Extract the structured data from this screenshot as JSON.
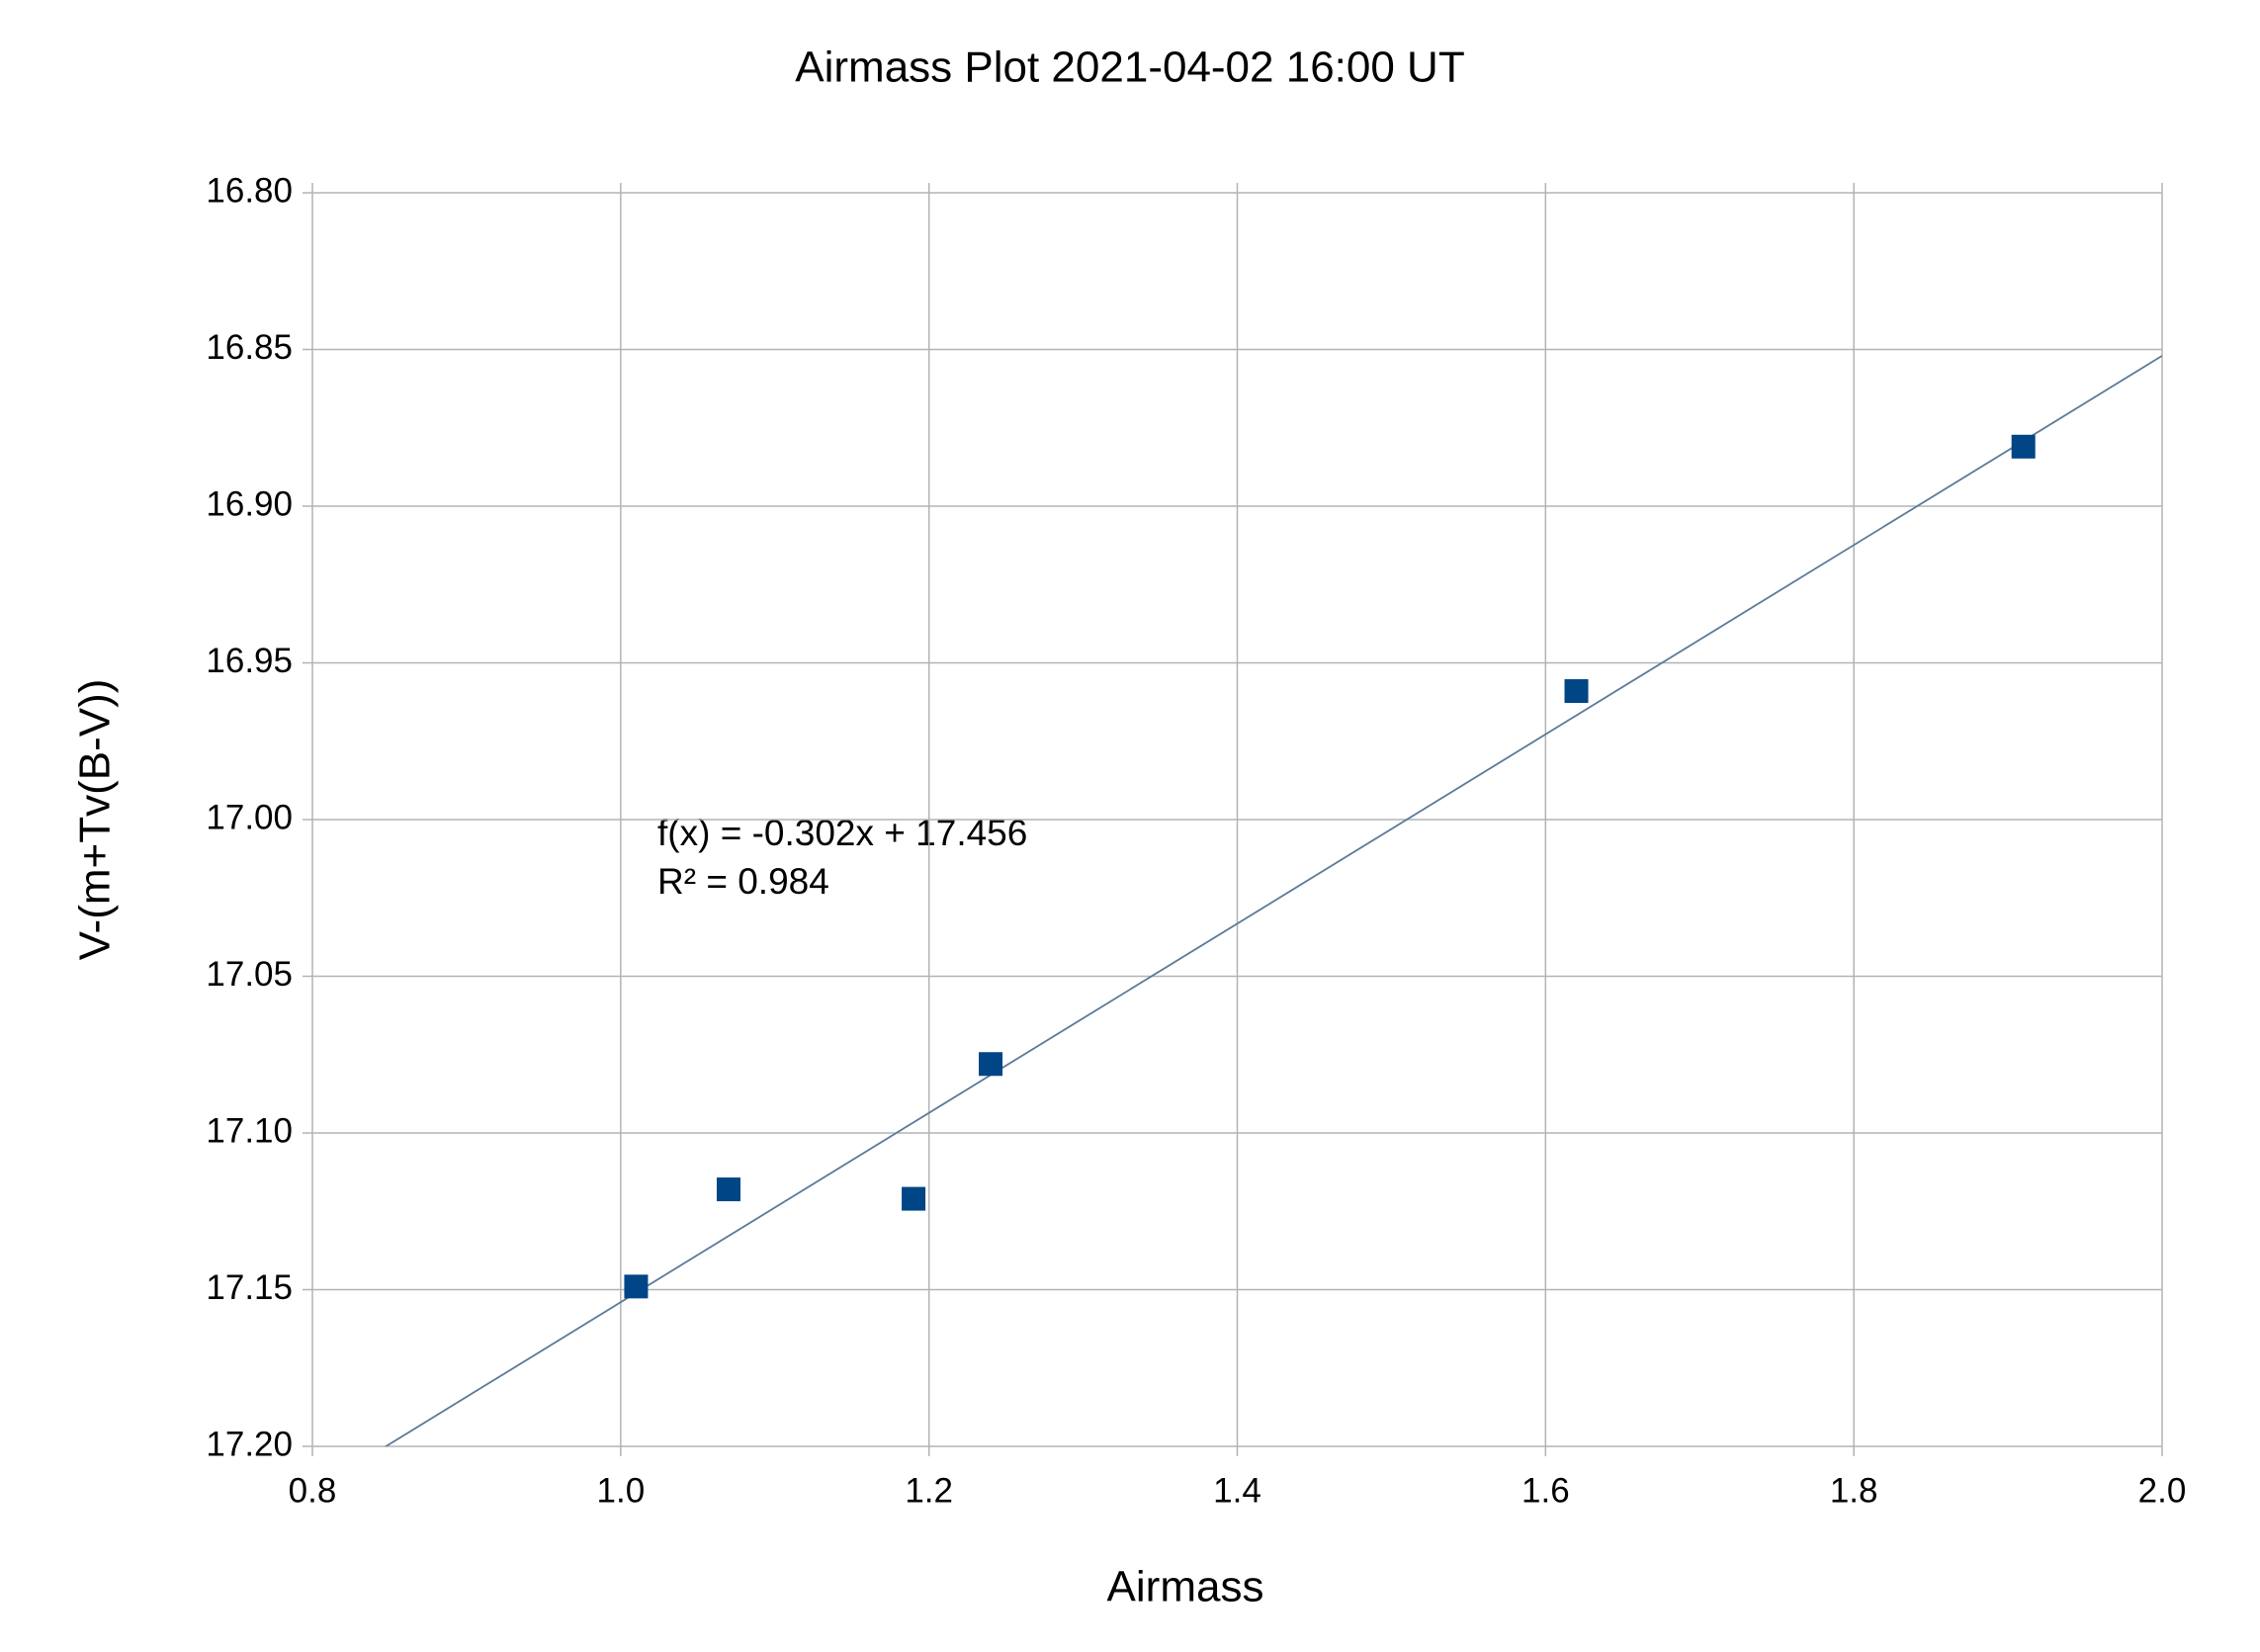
{
  "chart_data": {
    "type": "scatter",
    "title": "Airmass Plot 2021-04-02 16:00 UT",
    "x_label": "Airmass",
    "y_label": "V-(m+Tv(B-V))",
    "series": [
      {
        "color": "#004586",
        "x": [
          1.01,
          1.07,
          1.19,
          1.24,
          1.62,
          1.91
        ],
        "values": [
          17.149,
          17.118,
          17.121,
          17.078,
          16.959,
          16.881
        ]
      }
    ],
    "trendline": {
      "color": "#5a7b99",
      "slope": -0.302,
      "intercept": 17.456,
      "equation": "f(x) = -0.302x + 17.456",
      "r_squared": "R² = 0.984"
    },
    "xlim": [
      0.8,
      2.0
    ],
    "xticks": [
      0.8,
      {
        "value": 1.0,
        "label": "1.0"
      },
      1.2,
      1.4,
      1.6,
      1.8,
      {
        "value": 2.0,
        "label": "2.0"
      }
    ],
    "ylim": [
      17.2,
      16.8
    ],
    "yticks": [
      {
        "value": 16.8,
        "label": "16.80"
      },
      {
        "value": 16.85,
        "label": "16.85"
      },
      {
        "value": 16.9,
        "label": "16.90"
      },
      {
        "value": 16.95,
        "label": "16.95"
      },
      {
        "value": 17.0,
        "label": "17.00"
      },
      {
        "value": 17.05,
        "label": "17.05"
      },
      {
        "value": 17.1,
        "label": "17.10"
      },
      {
        "value": 17.15,
        "label": "17.15"
      },
      {
        "value": 17.2,
        "label": "17.20"
      }
    ],
    "grid": true
  }
}
